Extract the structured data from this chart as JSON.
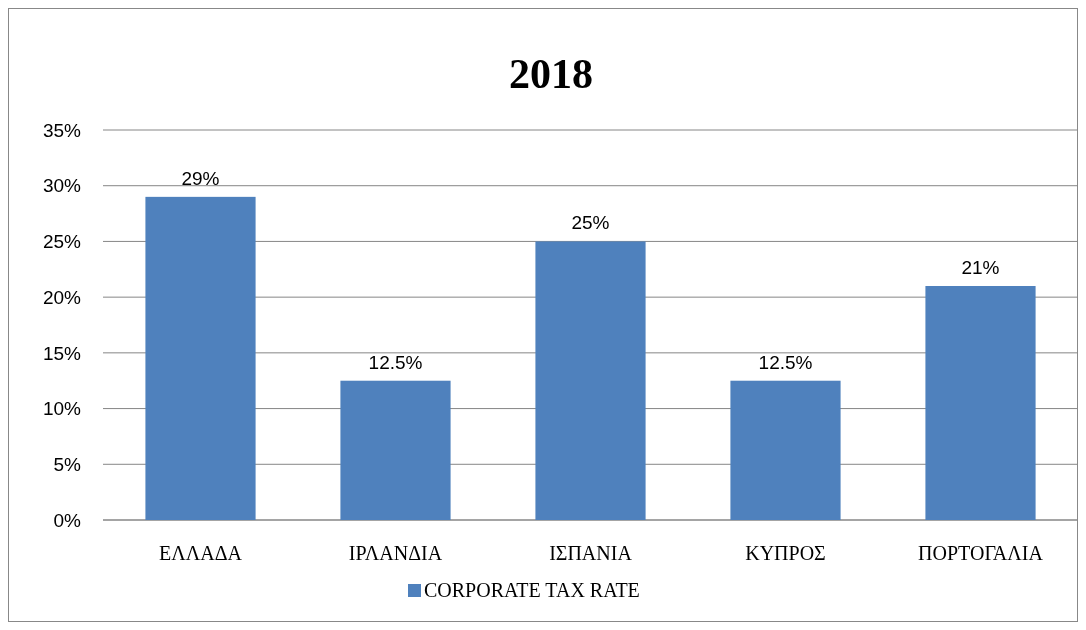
{
  "chart_data": {
    "type": "bar",
    "title": "2018",
    "categories": [
      "ΕΛΛΑΔΑ",
      "ΙΡΛΑΝΔΙΑ",
      "ΙΣΠΑΝΙΑ",
      "ΚΥΠΡΟΣ",
      "ΠΟΡΤΟΓΑΛΙΑ"
    ],
    "series": [
      {
        "name": "CORPORATE TAX RATE",
        "color": "#4f81bd",
        "values": [
          29,
          12.5,
          25,
          12.5,
          21
        ],
        "value_labels": [
          "29%",
          "12.5%",
          "25%",
          "12.5%",
          "21%"
        ]
      }
    ],
    "ylim": [
      0,
      35
    ],
    "yticks": [
      {
        "value": 0,
        "label": "0%"
      },
      {
        "value": 5,
        "label": "5%"
      },
      {
        "value": 10,
        "label": "10%"
      },
      {
        "value": 15,
        "label": "15%"
      },
      {
        "value": 20,
        "label": "20%"
      },
      {
        "value": 25,
        "label": "25%"
      },
      {
        "value": 30,
        "label": "30%"
      },
      {
        "value": 35,
        "label": "35%"
      }
    ],
    "grid": "y",
    "legend": "bottom"
  }
}
